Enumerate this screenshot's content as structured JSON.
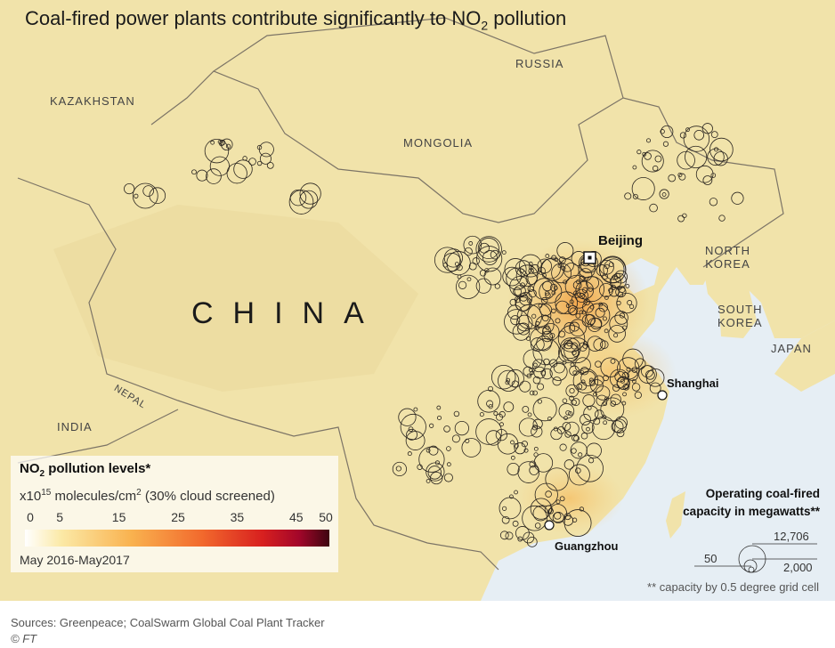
{
  "title": {
    "prefix": "Coal-fired power plants contribute significantly to NO",
    "sub": "2",
    "suffix": " pollution"
  },
  "labels": {
    "russia": "RUSSIA",
    "kazakhstan": "KAZAKHSTAN",
    "mongolia": "MONGOLIA",
    "china": "CHINA",
    "north_korea_1": "NORTH",
    "north_korea_2": "KOREA",
    "south_korea_1": "SOUTH",
    "south_korea_2": "KOREA",
    "japan": "JAPAN",
    "nepal": "NEPAL",
    "india": "INDIA"
  },
  "cities": {
    "beijing": "Beijing",
    "shanghai": "Shanghai",
    "guangzhou": "Guangzhou"
  },
  "no2_legend": {
    "title_prefix": "NO",
    "title_sub": "2",
    "title_suffix": " pollution levels*",
    "unit_prefix": "x10",
    "unit_exp": "15",
    "unit_mid": " molecules/cm",
    "unit_exp2": "2",
    "unit_suffix": " (30% cloud screened)",
    "ticks": [
      "0",
      "5",
      "15",
      "25",
      "35",
      "45",
      "50"
    ],
    "range": [
      0,
      50
    ],
    "period": "May 2016-May2017"
  },
  "capacity_legend": {
    "title_1": "Operating coal-fired",
    "title_2": "capacity in megawatts**",
    "values": [
      "12,706",
      "2,000",
      "50"
    ],
    "note": "** capacity by 0.5 degree grid cell"
  },
  "colors": {
    "land": "#f1e3aa",
    "sea": "#e6eef4",
    "pollution": "#f4a13c"
  },
  "footer": {
    "sources": "Sources: Greenpeace; CoalSwarm Global Coal Plant Tracker",
    "copyright": "© FT"
  }
}
